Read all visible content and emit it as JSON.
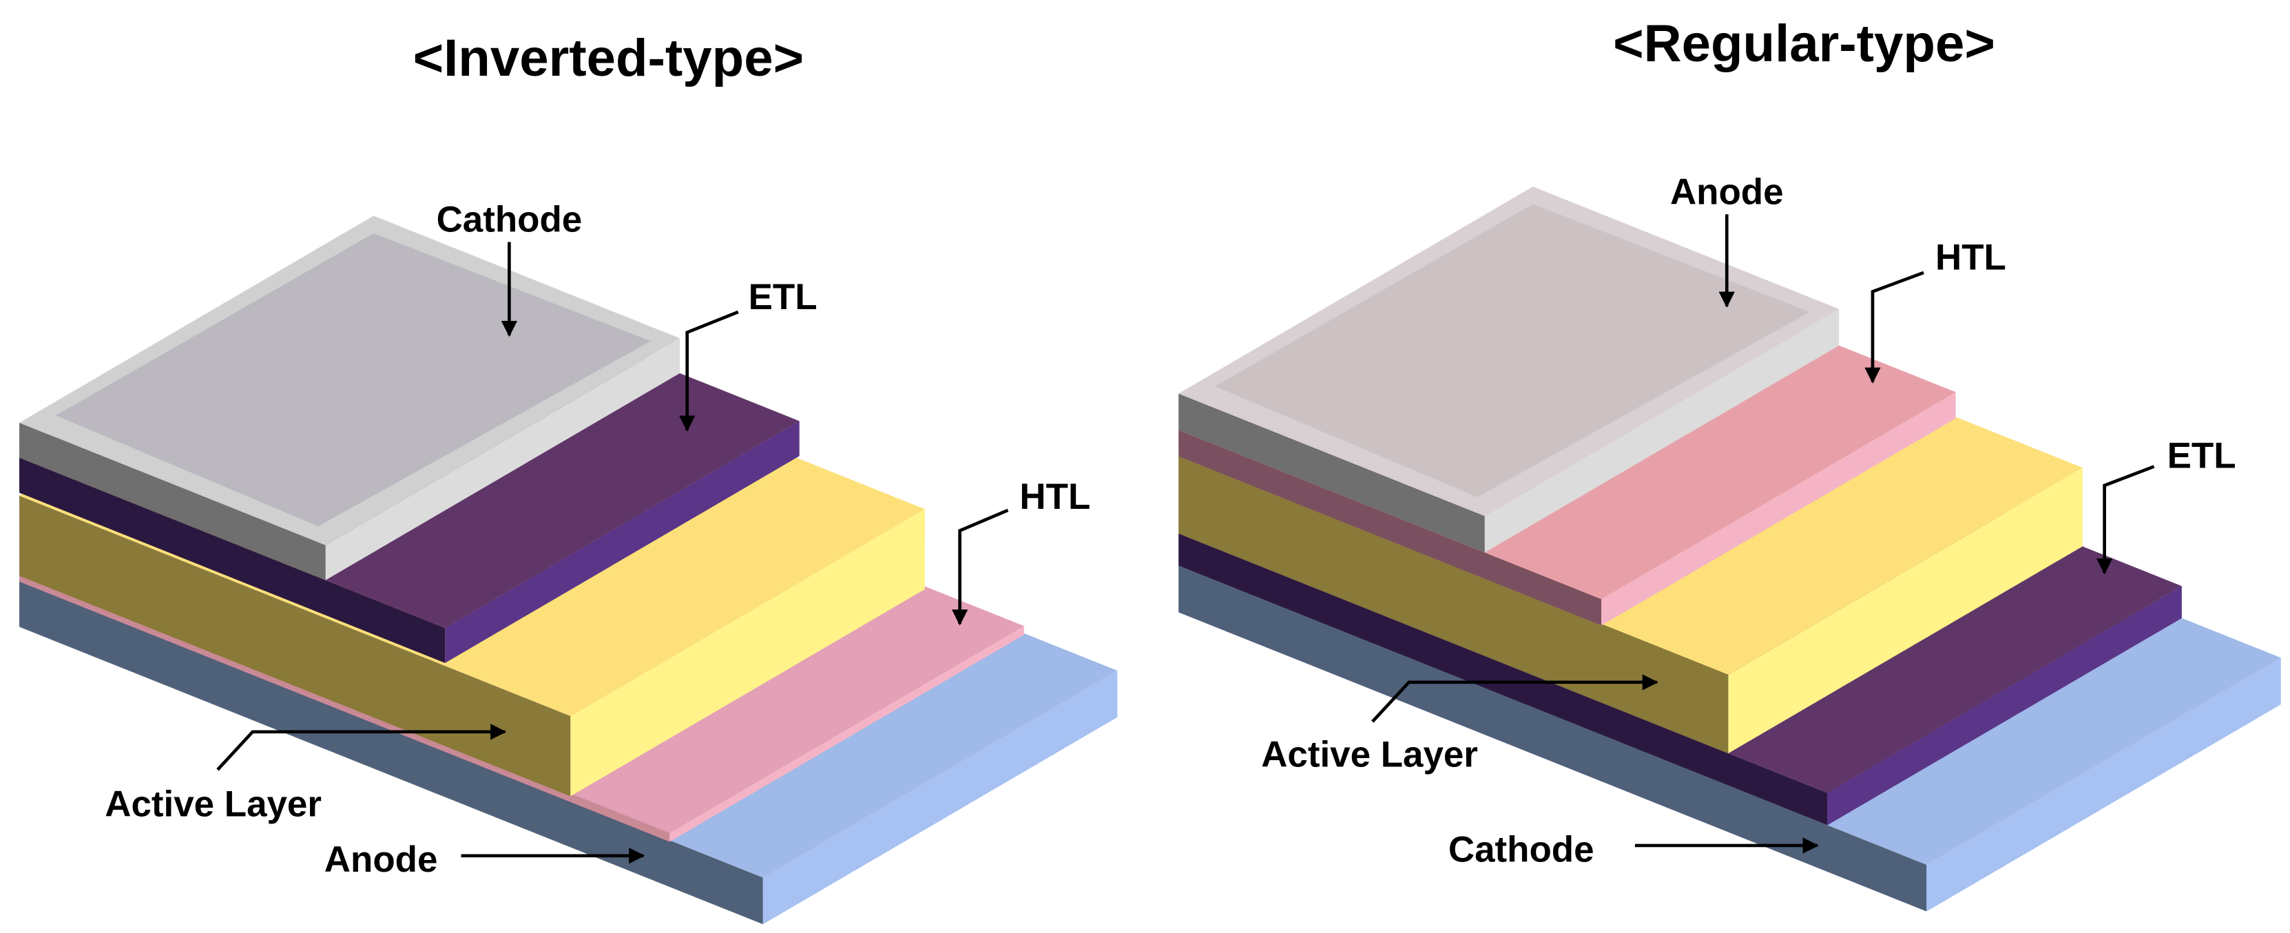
{
  "diagrams": [
    {
      "title": "<Inverted-type>",
      "labels": [
        "Cathode",
        "ETL",
        "HTL",
        "Active Layer",
        "Anode"
      ]
    },
    {
      "title": "<Regular-type>",
      "labels": [
        "Anode",
        "HTL",
        "ETL",
        "Active Layer",
        "Cathode"
      ]
    }
  ]
}
